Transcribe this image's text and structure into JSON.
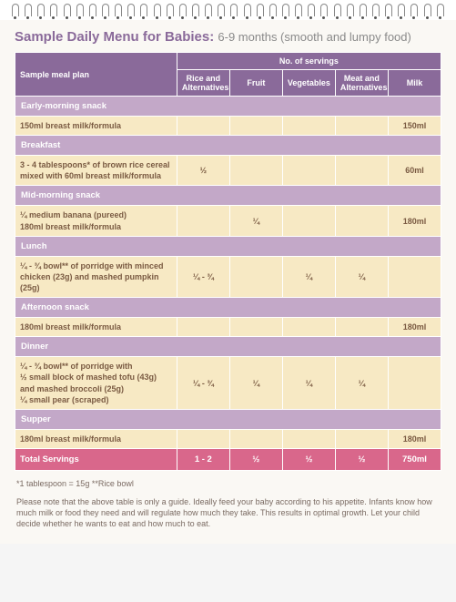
{
  "title": "Sample Daily Menu for Babies:",
  "subtitle": "6-9 months (smooth and lumpy food)",
  "colors": {
    "header_bg": "#8a6a9a",
    "section_bg": "#c3a8c8",
    "item_bg": "#f7e9c4",
    "totals_bg": "#d9678b",
    "page_bg": "#faf8f4",
    "title_color": "#8a6a9a",
    "subtitle_color": "#8a8a8a"
  },
  "columns": {
    "plan": "Sample meal plan",
    "servings": "No. of servings",
    "rice": "Rice and Alternatives",
    "fruit": "Fruit",
    "veg": "Vegetables",
    "meat": "Meat and Alternatives",
    "milk": "Milk"
  },
  "col_widths": {
    "plan_pct": 38,
    "serv_pct": 12.4
  },
  "sections": [
    {
      "label": "Early-morning snack",
      "rows": [
        {
          "desc": "150ml breast milk/formula",
          "rice": "",
          "fruit": "",
          "veg": "",
          "meat": "",
          "milk": "150ml"
        }
      ]
    },
    {
      "label": "Breakfast",
      "rows": [
        {
          "desc": "3 - 4 tablespoons* of brown rice cereal mixed with 60ml breast milk/formula",
          "rice": "½",
          "fruit": "",
          "veg": "",
          "meat": "",
          "milk": "60ml"
        }
      ]
    },
    {
      "label": "Mid-morning snack",
      "rows": [
        {
          "desc": "¼ medium banana (pureed)\n180ml breast milk/formula",
          "rice": "",
          "fruit": "¼",
          "veg": "",
          "meat": "",
          "milk": "180ml"
        }
      ]
    },
    {
      "label": "Lunch",
      "rows": [
        {
          "desc": "¼ - ¾ bowl** of porridge with minced chicken (23g) and mashed pumpkin (25g)",
          "rice": "¼ - ¾",
          "fruit": "",
          "veg": "¼",
          "meat": "¼",
          "milk": ""
        }
      ]
    },
    {
      "label": "Afternoon snack",
      "rows": [
        {
          "desc": "180ml breast milk/formula",
          "rice": "",
          "fruit": "",
          "veg": "",
          "meat": "",
          "milk": "180ml"
        }
      ]
    },
    {
      "label": "Dinner",
      "rows": [
        {
          "desc": "¼ - ¾ bowl** of porridge with\n½ small block of mashed tofu (43g) and mashed broccoli (25g)\n¼ small pear (scraped)",
          "rice": "¼ - ¾",
          "fruit": "¼",
          "veg": "¼",
          "meat": "¼",
          "milk": ""
        }
      ]
    },
    {
      "label": "Supper",
      "rows": [
        {
          "desc": "180ml breast milk/formula",
          "rice": "",
          "fruit": "",
          "veg": "",
          "meat": "",
          "milk": "180ml"
        }
      ]
    }
  ],
  "totals": {
    "label": "Total Servings",
    "rice": "1 - 2",
    "fruit": "½",
    "veg": "½",
    "meat": "½",
    "milk": "750ml"
  },
  "footnote1": "*1 tablespoon = 15g    **Rice bowl",
  "footnote2": "Please note that the above table is only a guide. Ideally feed your baby according to his appetite. Infants know how much milk or food they need and will regulate how much they take. This results in optimal growth. Let your child decide whether he wants to eat and how much to eat."
}
